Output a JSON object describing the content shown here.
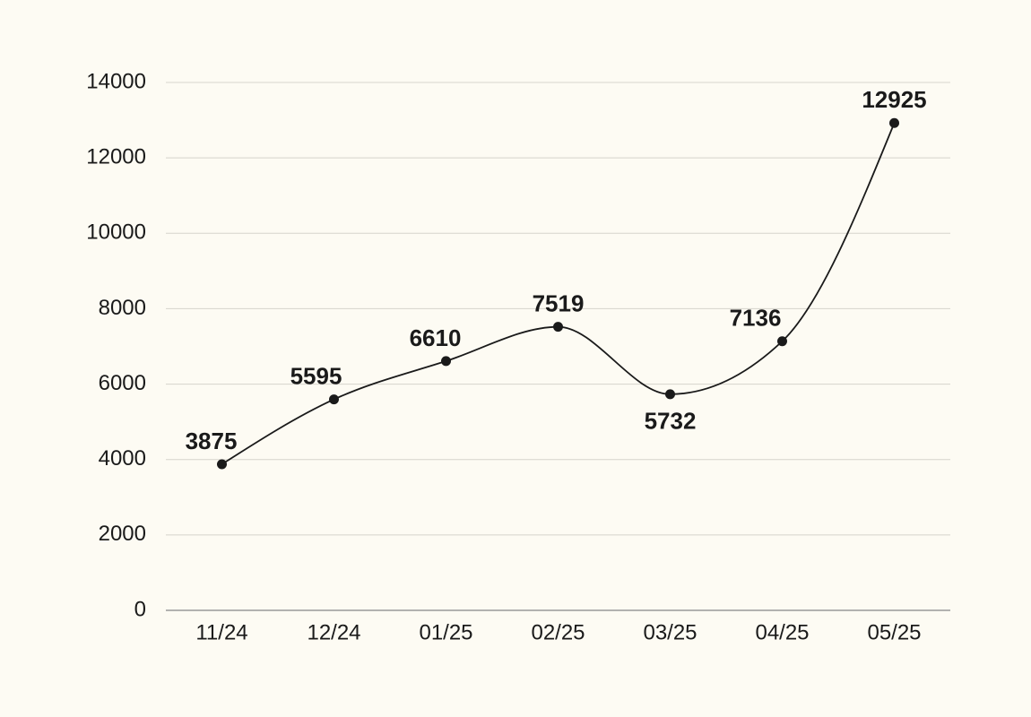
{
  "chart_data": {
    "type": "line",
    "categories": [
      "11/24",
      "12/24",
      "01/25",
      "02/25",
      "03/25",
      "04/25",
      "05/25"
    ],
    "values": [
      3875,
      5595,
      6610,
      7519,
      5732,
      7136,
      12925
    ],
    "color": "#1a1a1a",
    "ylim": [
      0,
      14000
    ],
    "yticks": [
      0,
      2000,
      4000,
      6000,
      8000,
      10000,
      12000,
      14000
    ],
    "grid": true
  }
}
